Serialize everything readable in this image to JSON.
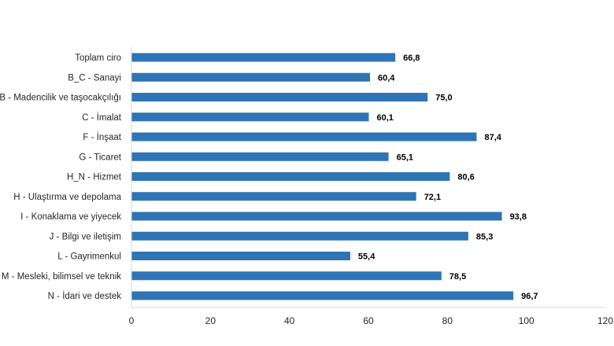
{
  "chart_data": {
    "type": "bar",
    "orientation": "horizontal",
    "categories": [
      "Toplam ciro",
      "B_C - Sanayi",
      "B - Madencilik ve taşocakçılığı",
      "C - İmalat",
      "F - İnşaat",
      "G - Ticaret",
      "H_N - Hizmet",
      "H - Ulaştırma ve depolama",
      "I - Konaklama ve yiyecek",
      "J - Bilgi ve iletişim",
      "L - Gayrimenkul",
      "M - Mesleki, bilimsel ve teknik",
      "N - İdari ve destek"
    ],
    "values": [
      66.8,
      60.4,
      75.0,
      60.1,
      87.4,
      65.1,
      80.6,
      72.1,
      93.8,
      85.3,
      55.4,
      78.5,
      96.7
    ],
    "value_labels": [
      "66,8",
      "60,4",
      "75,0",
      "60,1",
      "87,4",
      "65,1",
      "80,6",
      "72,1",
      "93,8",
      "85,3",
      "55,4",
      "78,5",
      "96,7"
    ],
    "xlim": [
      0,
      120
    ],
    "xticks": [
      "0",
      "20",
      "40",
      "60",
      "80",
      "100",
      "120"
    ],
    "title": "",
    "xlabel": "",
    "ylabel": "",
    "grid": false,
    "bar_color": "#2e75b6",
    "axis_color": "#d9d9d9"
  }
}
